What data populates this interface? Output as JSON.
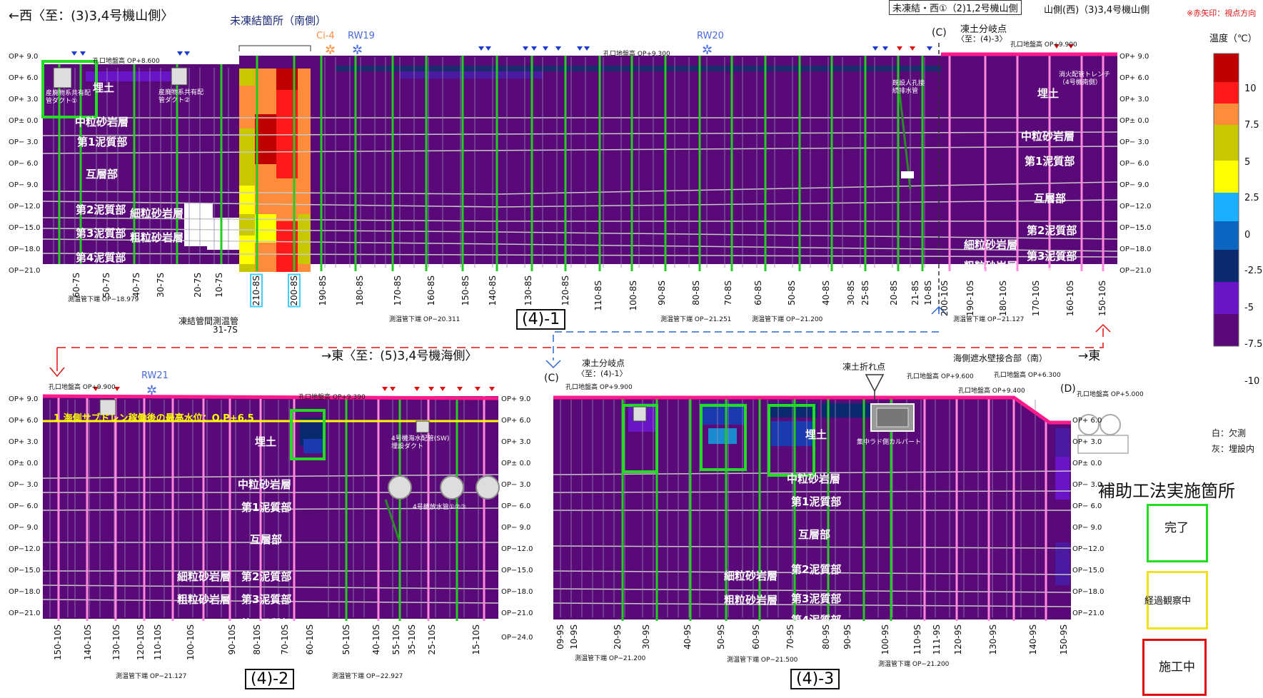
{
  "top": {
    "west_label": "←西〈至：(3)3,4号機山側〉",
    "header_note": "未凍結・西①（2)1,2号機山側",
    "header_note2": "山側(西)（3)3,4号機山側",
    "header_note3": "※赤矢印：視点方向",
    "unfrozen_label": "未凍結箇所（南側）",
    "ci4": "Ci-4",
    "rw19": "RW19",
    "rw20": "RW20",
    "point_c": "(C)",
    "branch_label": "凍土分岐点",
    "branch_sub": "〈至：(4)-3〉",
    "ground_left": "孔口地盤高 OP+8.600",
    "ground_mid": "孔口地盤高 OP+9.300",
    "ground_right": "孔口地盤高 OP+9.900",
    "duct1": "産廃物系共有配管ダクト①",
    "duct2": "産廃物系共有配管ダクト②",
    "culvert": "既設人孔接続排水管",
    "trench": "消火配管トレンチ（4号機南側）",
    "fill": "埋土",
    "layers": [
      "中粒砂岩層",
      "第1泥質部",
      "互層部",
      "第2泥質部",
      "第3泥質部",
      "第4泥質部"
    ],
    "layers_extra": [
      "細粒砂岩層",
      "粗粒砂岩層"
    ],
    "op_labels": [
      "OP+ 9.0",
      "OP+ 6.0",
      "OP+ 3.0",
      "OP± 0.0",
      "OP− 3.0",
      "OP− 6.0",
      "OP− 9.0",
      "OP−12.0",
      "OP−15.0",
      "OP−18.0",
      "OP−21.0"
    ],
    "bores": [
      "60-7S",
      "50-7S",
      "40-7S",
      "30-7S",
      "20-7S",
      "10-7S",
      "210-8S",
      "200-8S",
      "190-8S",
      "180-8S",
      "170-8S",
      "160-8S",
      "150-8S",
      "140-8S",
      "130-8S",
      "120-8S",
      "110-8S",
      "100-8S",
      "90-8S",
      "80-8S",
      "70-8S",
      "60-8S",
      "50-8S",
      "40-8S",
      "30-8S",
      "25-8S",
      "20-8S",
      "21-8S",
      "10-8S",
      "200-10S",
      "190-10S",
      "180-10S",
      "170-10S",
      "160-10S",
      "150-10S"
    ],
    "bottom_notes": [
      "測温管下端 OP−18.979",
      "凍結管間測温管",
      "31-7S",
      "測温管下端 OP−20.311",
      "測温管下端 OP−21.251",
      "測温管下端 OP−21.200",
      "測温管下端 OP−21.127"
    ],
    "panel": "(4)-1"
  },
  "bottom_left": {
    "east_label": "→東〈至：(5)3,4号機海側〉",
    "rw21": "RW21",
    "ground": "孔口地盤高 OP+9.900",
    "ground2": "孔口地盤高 OP+9.390",
    "water_level": "1 海側サブドレン稼働後の最高水位：O.P+6.5",
    "duct": "4号機海水配管(SW)埋設ダクト",
    "drain": "4号機放水管①②③",
    "fill": "埋土",
    "op_labels": [
      "OP+ 9.0",
      "OP+ 6.0",
      "OP+ 3.0",
      "OP± 0.0",
      "OP− 3.0",
      "OP− 6.0",
      "OP− 9.0",
      "OP−12.0",
      "OP−15.0",
      "OP−18.0",
      "OP−21.0",
      "OP−24.0"
    ],
    "bores": [
      "150-10S",
      "140-10S",
      "130-10S",
      "120-10S",
      "110-10S",
      "100-10S",
      "90-10S",
      "80-10S",
      "70-10S",
      "60-10S",
      "50-10S",
      "40-10S",
      "55-10S",
      "35-10S",
      "25-10S",
      "15-10S"
    ],
    "bottom_notes": [
      "測温管下端 OP−21.127",
      "測温管下端 OP−22.927"
    ],
    "panel": "(4)-2"
  },
  "bottom_right": {
    "east_arrow": "→東",
    "point_c": "(C)",
    "point_d": "(D)",
    "branch_label": "凍土分岐点",
    "branch_sub": "〈至：(4)-1〉",
    "bend_label": "凍土折れ点",
    "seawall": "海側遮水壁接合部（南）",
    "culvert": "集中ラド側カルバート",
    "ground": "孔口地盤高 OP+9.900",
    "ground2": "孔口地盤高 OP+9.600",
    "ground3": "孔口地盤高 OP+9.400",
    "ground4": "孔口地盤高 OP+6.300",
    "ground5": "孔口地盤高 OP+5.000",
    "fill": "埋土",
    "bores": [
      "09-9S",
      "10-9S",
      "20-9S",
      "30-9S",
      "40-9S",
      "50-9S",
      "60-9S",
      "70-9S",
      "80-9S",
      "90-9S",
      "100-9S",
      "110-9S",
      "111-9S",
      "120-9S",
      "130-9S",
      "140-9S",
      "150-9S"
    ],
    "bottom_notes": [
      "測温管下端 OP−21.200",
      "測温管下端 OP−21.500",
      "測温管下端 OP−21.200"
    ],
    "panel": "(4)-3"
  },
  "legend": {
    "title": "温度（℃）",
    "ticks": [
      "10",
      "7.5",
      "5",
      "2.5",
      "0",
      "-2.5",
      "-5",
      "-7.5",
      "-10"
    ],
    "colors": [
      "#c00000",
      "#ff1a1a",
      "#ff8c3a",
      "#c8c800",
      "#ffff00",
      "#1ab0ff",
      "#0a66c0",
      "#0a2a70",
      "#6a14c8",
      "#5a0a78"
    ],
    "white_note": "白：欠測",
    "gray_note": "灰：埋設内",
    "aux_title": "補助工法実施箇所",
    "status": [
      {
        "label": "完了",
        "color": "#22dd22"
      },
      {
        "label": "経過観察中",
        "color": "#f0e020"
      },
      {
        "label": "施工中",
        "color": "#e01010"
      }
    ]
  },
  "colors": {
    "frozen": "#5a0a78",
    "pipe_green": "#22cc22",
    "pipe_pink": "#ff88dd",
    "ground_line": "#ff1a8c"
  }
}
